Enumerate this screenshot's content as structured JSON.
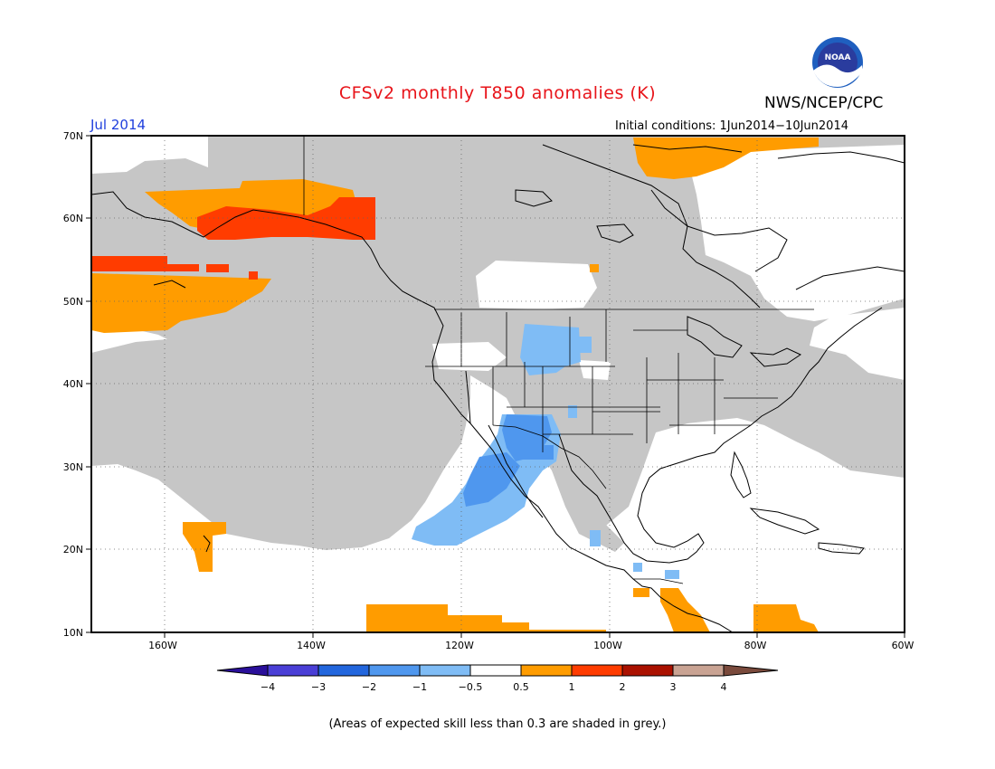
{
  "title": "CFSv2 monthly T850 anomalies (K)",
  "agency": "NWS/NCEP/CPC",
  "logo_text": "NOAA",
  "valid_month": "Jul 2014",
  "initial_conditions": "Initial conditions: 1Jun2014−10Jun2014",
  "footnote": "(Areas of expected skill less than 0.3 are shaded in grey.)",
  "lat_labels": [
    "70N",
    "60N",
    "50N",
    "40N",
    "30N",
    "20N",
    "10N"
  ],
  "lon_labels": [
    "160W",
    "140W",
    "120W",
    "100W",
    "80W",
    "60W"
  ],
  "colorbar": {
    "labels": [
      "−4",
      "−3",
      "−2",
      "−1",
      "−0.5",
      "0.5",
      "1",
      "2",
      "3",
      "4"
    ],
    "colors": [
      "#2a0f9a",
      "#4a3fd6",
      "#2266dd",
      "#4f97ee",
      "#7fbcf5",
      "#ffffff",
      "#ff9c00",
      "#ff3c00",
      "#aa1100",
      "#c9a393",
      "#7a4a3c"
    ]
  },
  "colors": {
    "grey_mask": "#c6c6c6",
    "warm_1": "#ff9c00",
    "warm_2": "#ff3c00",
    "cool_1": "#7fbcf5",
    "cool_2": "#4f97ee"
  }
}
